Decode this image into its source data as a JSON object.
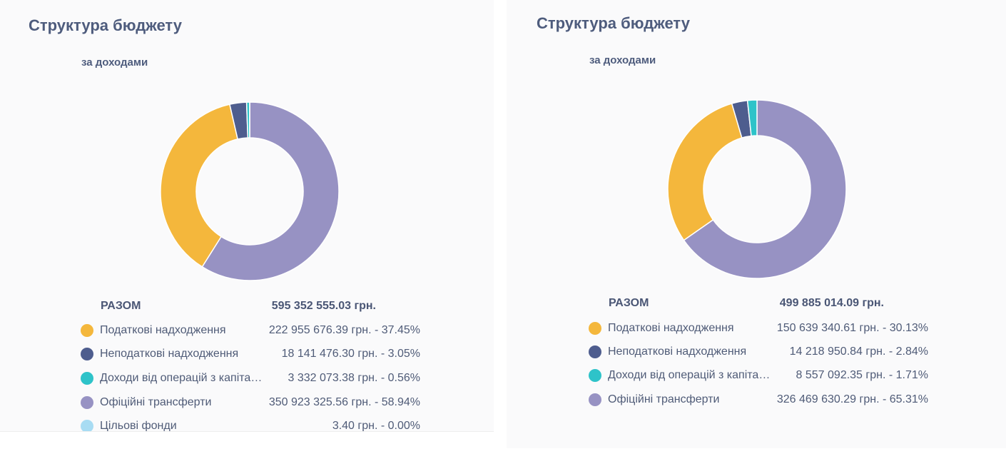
{
  "chart_data": [
    {
      "type": "pie",
      "title": "Структура бюджету",
      "subtitle": "за доходами",
      "total": {
        "label": "РАЗОМ",
        "amount": "595 352 555.03 грн."
      },
      "series": [
        {
          "name": "Податкові надходження",
          "value": 222955676.39,
          "amount": "222 955 676.39 грн. - 37.45%",
          "color": "#f4b73c"
        },
        {
          "name": "Неподаткові надходження",
          "value": 18141476.3,
          "amount": "18 141 476.30 грн. -   3.05%",
          "color": "#4e5d8e"
        },
        {
          "name": "Доходи від операцій з капіталом",
          "display_name": "Доходи від операцій з капіта…",
          "value": 3332073.38,
          "amount": "3 332 073.38 грн. -   0.56%",
          "color": "#2ec3c9"
        },
        {
          "name": "Офіційні трансферти",
          "value": 350923325.56,
          "amount": "350 923 325.56 грн. - 58.94%",
          "color": "#9792c3"
        },
        {
          "name": "Цільові фонди",
          "value": 3.4,
          "amount": "3.40 грн. -   0.00%",
          "color": "#a8dcf3"
        }
      ]
    },
    {
      "type": "pie",
      "title": "Структура бюджету",
      "subtitle": "за доходами",
      "total": {
        "label": "РАЗОМ",
        "amount": "499 885 014.09 грн."
      },
      "series": [
        {
          "name": "Податкові надходження",
          "value": 150639340.61,
          "amount": "150 639 340.61 грн. - 30.13%",
          "color": "#f4b73c"
        },
        {
          "name": "Неподаткові надходження",
          "value": 14218950.84,
          "amount": "14 218 950.84 грн. -   2.84%",
          "color": "#4e5d8e"
        },
        {
          "name": "Доходи від операцій з капіталом",
          "display_name": "Доходи від операцій з капіта…",
          "value": 8557092.35,
          "amount": "8 557 092.35 грн. -   1.71%",
          "color": "#2ec3c9"
        },
        {
          "name": "Офіційні трансферти",
          "value": 326469630.29,
          "amount": "326 469 630.29 грн. - 65.31%",
          "color": "#9792c3"
        }
      ]
    }
  ]
}
